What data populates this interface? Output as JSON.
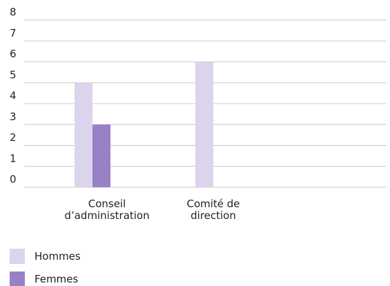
{
  "chart_data": {
    "type": "bar",
    "categories": [
      "Conseil\nd’administration",
      "Comité de\ndirection"
    ],
    "series": [
      {
        "name": "Hommes",
        "color": "#dcd3ec",
        "values": [
          5,
          6
        ]
      },
      {
        "name": "Femmes",
        "color": "#9a80c6",
        "values": [
          3,
          0
        ]
      }
    ],
    "ylim": [
      0,
      8
    ],
    "yticks": [
      0,
      1,
      2,
      3,
      4,
      5,
      6,
      7,
      8
    ],
    "grid": true,
    "legend": "bottom-left"
  }
}
